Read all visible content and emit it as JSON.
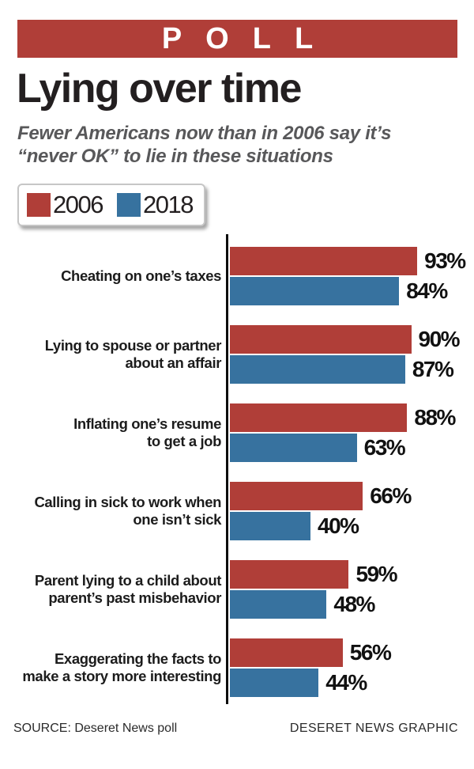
{
  "banner": {
    "label": "POLL",
    "color": "#b03e38"
  },
  "title": "Lying over time",
  "subtitle": {
    "line1": "Fewer Americans now than in 2006 say it’s",
    "line2": "“never OK” to lie in these situations"
  },
  "legend": {
    "items": [
      {
        "label": "2006",
        "color": "#b03e38"
      },
      {
        "label": "2018",
        "color": "#37729f"
      }
    ]
  },
  "chart_data": {
    "type": "bar",
    "orientation": "horizontal",
    "unit": "%",
    "xlim": [
      0,
      100
    ],
    "grid": false,
    "value_labels": "outside-end",
    "categories": [
      {
        "label": "Cheating on one’s taxes",
        "lines": [
          "Cheating on one’s taxes"
        ]
      },
      {
        "label": "Lying to spouse or partner about an affair",
        "lines": [
          "Lying to spouse or partner",
          "about an affair"
        ]
      },
      {
        "label": "Inflating one’s resume to get a job",
        "lines": [
          "Inflating one’s resume",
          "to get a job"
        ]
      },
      {
        "label": "Calling in sick to work when one isn’t sick",
        "lines": [
          "Calling in sick to work when",
          "one isn’t sick"
        ]
      },
      {
        "label": "Parent lying to a child about parent’s past misbehavior",
        "lines": [
          "Parent lying to a child about",
          "parent’s past misbehavior"
        ]
      },
      {
        "label": "Exaggerating the facts to make a story more interesting",
        "lines": [
          "Exaggerating the facts to",
          "make a story more interesting"
        ]
      }
    ],
    "series": [
      {
        "name": "2006",
        "color": "#b03e38",
        "values": [
          93,
          90,
          88,
          66,
          59,
          56
        ]
      },
      {
        "name": "2018",
        "color": "#37729f",
        "values": [
          84,
          87,
          63,
          40,
          48,
          44
        ]
      }
    ]
  },
  "footer": {
    "source": "SOURCE: Deseret News poll",
    "credit": "DESERET NEWS GRAPHIC"
  }
}
